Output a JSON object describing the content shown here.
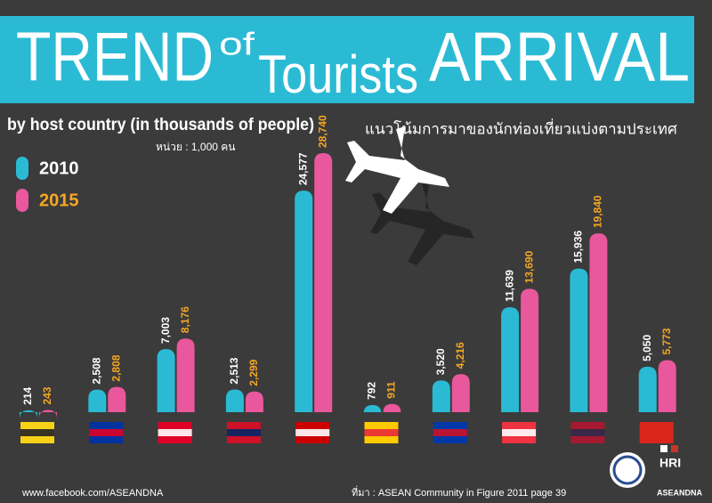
{
  "chart_data": {
    "type": "bar",
    "title_parts": [
      "TREND",
      "of",
      "Tourists",
      "ARRIVAL"
    ],
    "subtitle": "by host country (in thousands of people)",
    "subtitle_th": "แนวโน้มการมาของนักท่องเที่ยวแบ่งตามประเทศ",
    "unit_note": "หน่วย : 1,000 คน",
    "categories": [
      null,
      null,
      null,
      null,
      null,
      null,
      null,
      null,
      null,
      null
    ],
    "series": [
      {
        "name": "2010",
        "color": "#2bbad4",
        "label_color": "#ffffff",
        "values": [
          214,
          2508,
          7003,
          2513,
          24577,
          792,
          3520,
          11639,
          15936,
          5050
        ],
        "value_labels": [
          "214",
          "2,508",
          "7,003",
          "2,513",
          "24,577",
          "792",
          "3,520",
          "11,639",
          "15,936",
          "5,050"
        ]
      },
      {
        "name": "2015",
        "color": "#e9579c",
        "label_color": "#f5a623",
        "values": [
          243,
          2808,
          8176,
          2299,
          28740,
          911,
          4216,
          13690,
          19840,
          5773
        ],
        "value_labels": [
          "243",
          "2,808",
          "8,176",
          "2,299",
          "28,740",
          "911",
          "4,216",
          "13,690",
          "19,840",
          "5,773"
        ]
      }
    ],
    "footer_left": "www.facebook.com/ASEANDNA",
    "source": "ที่มา : ASEAN Community in Figure 2011 page 39",
    "logo_hri": "HRI",
    "logo_asean": "ASEANDNA"
  }
}
